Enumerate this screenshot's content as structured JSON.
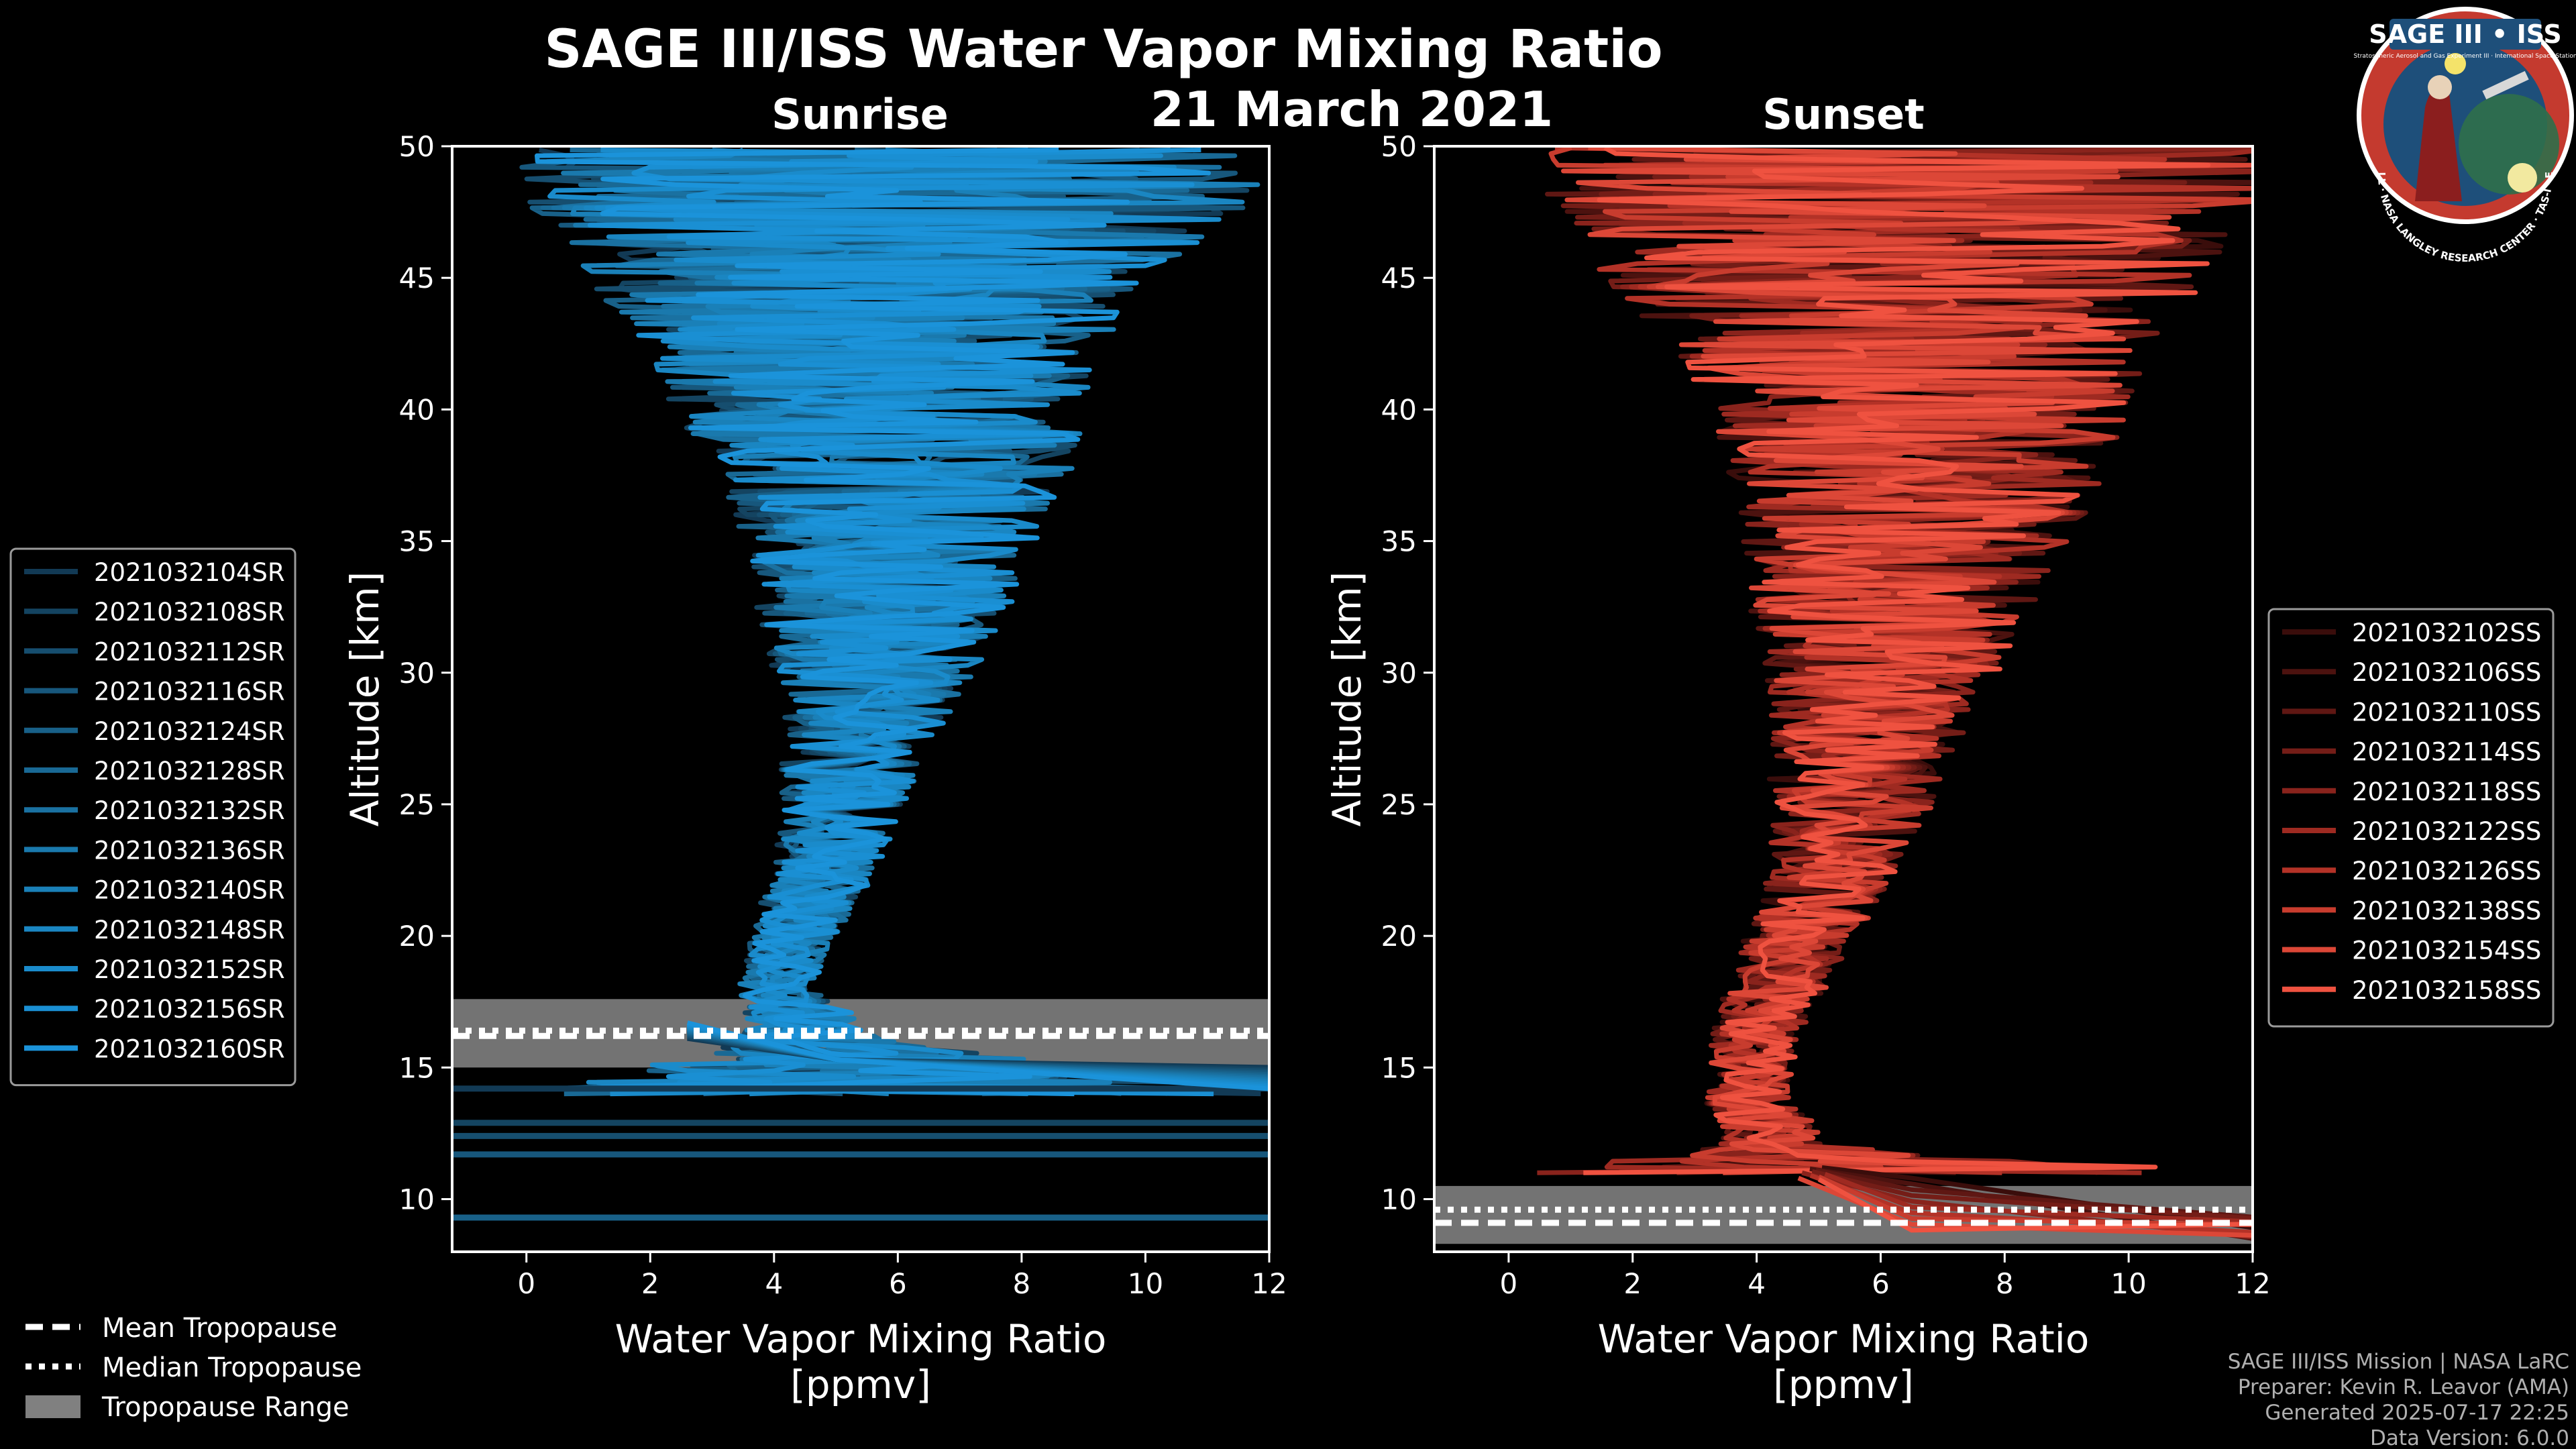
{
  "title": "SAGE III/ISS Water Vapor Mixing Ratio",
  "date": "21 March 2021",
  "logo": {
    "title_text": "SAGE III • ISS",
    "subtitle_text": "Stratospheric Aerosol and Gas Experiment III · International Space Station",
    "ring_text": "BALL · NASA LANGLEY RESEARCH CENTER · TAS-I · ESA",
    "ring_color": "#c43a2f",
    "inner_color": "#1e4f7a"
  },
  "footer": {
    "line1": "SAGE III/ISS Mission | NASA LaRC",
    "line2": "Preparer: Kevin R. Leavor (AMA)",
    "line3": "Generated 2025-07-17 22:25",
    "line4": "Data Version: 6.0.0"
  },
  "legend_tropopause": {
    "mean": "Mean Tropopause",
    "median": "Median Tropopause",
    "range": "Tropopause Range"
  },
  "chart_data": [
    {
      "type": "line",
      "panel": "sunrise",
      "subtitle": "Sunrise",
      "xlabel": "Water Vapor Mixing Ratio\n[ppmv]",
      "ylabel": "Altitude [km]",
      "xlim": [
        -1.2,
        12
      ],
      "ylim": [
        8,
        50
      ],
      "xticks": [
        0,
        2,
        4,
        6,
        8,
        10,
        12
      ],
      "yticks": [
        10,
        15,
        20,
        25,
        30,
        35,
        40,
        45,
        50
      ],
      "color": "#1a8fd6",
      "series": [
        {
          "name": "2021032104SR",
          "color": "#123a55"
        },
        {
          "name": "2021032108SR",
          "color": "#144461"
        },
        {
          "name": "2021032112SR",
          "color": "#164e6f"
        },
        {
          "name": "2021032116SR",
          "color": "#17577c"
        },
        {
          "name": "2021032124SR",
          "color": "#186088"
        },
        {
          "name": "2021032128SR",
          "color": "#196995"
        },
        {
          "name": "2021032132SR",
          "color": "#1a71a1"
        },
        {
          "name": "2021032136SR",
          "color": "#1a79ad"
        },
        {
          "name": "2021032140SR",
          "color": "#1a80b8"
        },
        {
          "name": "2021032148SR",
          "color": "#1a86c2"
        },
        {
          "name": "2021032152SR",
          "color": "#1a8bcb"
        },
        {
          "name": "2021032156SR",
          "color": "#1a8fd3"
        },
        {
          "name": "2021032160SR",
          "color": "#1b93da"
        }
      ],
      "tropopause": {
        "mean": 16.2,
        "median": 16.4,
        "range": [
          15.0,
          17.6
        ]
      },
      "profile_mean": {
        "altitude": [
          14,
          16,
          18,
          20,
          22,
          24,
          26,
          28,
          30,
          32,
          34,
          36,
          38,
          40,
          42,
          44,
          46,
          48,
          50
        ],
        "value": [
          6.0,
          4.6,
          3.9,
          4.2,
          4.6,
          4.9,
          5.1,
          5.3,
          5.5,
          5.6,
          5.7,
          5.8,
          5.8,
          5.6,
          5.4,
          5.4,
          5.5,
          5.8,
          5.8
        ]
      },
      "profile_spread": {
        "altitude": [
          14,
          16,
          18,
          20,
          22,
          24,
          26,
          28,
          30,
          32,
          34,
          36,
          38,
          40,
          42,
          44,
          46,
          48,
          50
        ],
        "value": [
          6,
          1.2,
          0.6,
          0.7,
          0.8,
          0.9,
          1.1,
          1.3,
          1.6,
          2.0,
          2.2,
          2.6,
          3.0,
          3.3,
          3.6,
          4.3,
          5.0,
          6.0,
          6.0
        ]
      },
      "horizontal_lines_below": [
        14.2,
        12.9,
        12.4,
        11.7,
        9.3
      ]
    },
    {
      "type": "line",
      "panel": "sunset",
      "subtitle": "Sunset",
      "xlabel": "Water Vapor Mixing Ratio\n[ppmv]",
      "ylabel": "Altitude [km]",
      "xlim": [
        -1.2,
        12
      ],
      "ylim": [
        8,
        50
      ],
      "xticks": [
        0,
        2,
        4,
        6,
        8,
        10,
        12
      ],
      "yticks": [
        10,
        15,
        20,
        25,
        30,
        35,
        40,
        45,
        50
      ],
      "color": "#f05a4a",
      "series": [
        {
          "name": "2021032102SS",
          "color": "#3a0d0b"
        },
        {
          "name": "2021032106SS",
          "color": "#4c120f"
        },
        {
          "name": "2021032110SS",
          "color": "#5f1713"
        },
        {
          "name": "2021032114SS",
          "color": "#741d17"
        },
        {
          "name": "2021032118SS",
          "color": "#89231c"
        },
        {
          "name": "2021032122SS",
          "color": "#9e2a21"
        },
        {
          "name": "2021032126SS",
          "color": "#b33227"
        },
        {
          "name": "2021032138SS",
          "color": "#c83c2e"
        },
        {
          "name": "2021032154SS",
          "color": "#dc4737"
        },
        {
          "name": "2021032158SS",
          "color": "#ef5240"
        }
      ],
      "tropopause": {
        "mean": 9.1,
        "median": 9.6,
        "range": [
          8.3,
          10.5
        ]
      },
      "profile_mean": {
        "altitude": [
          11,
          12,
          14,
          16,
          18,
          20,
          22,
          24,
          26,
          28,
          30,
          32,
          34,
          36,
          38,
          40,
          42,
          44,
          46,
          48,
          50
        ],
        "value": [
          6.0,
          4.2,
          3.7,
          3.8,
          4.2,
          4.6,
          5.0,
          5.3,
          5.5,
          5.7,
          5.9,
          6.0,
          6.2,
          6.4,
          6.5,
          6.5,
          6.4,
          6.3,
          6.2,
          6.5,
          6.5
        ]
      },
      "profile_spread": {
        "altitude": [
          11,
          12,
          14,
          16,
          18,
          20,
          22,
          24,
          26,
          28,
          30,
          32,
          34,
          36,
          38,
          40,
          42,
          44,
          46,
          48,
          50
        ],
        "value": [
          6,
          0.9,
          0.7,
          0.7,
          0.8,
          0.9,
          1.0,
          1.2,
          1.4,
          1.6,
          1.9,
          2.2,
          2.5,
          2.8,
          3.1,
          3.4,
          3.8,
          4.5,
          5.2,
          6.0,
          6.0
        ]
      }
    }
  ]
}
